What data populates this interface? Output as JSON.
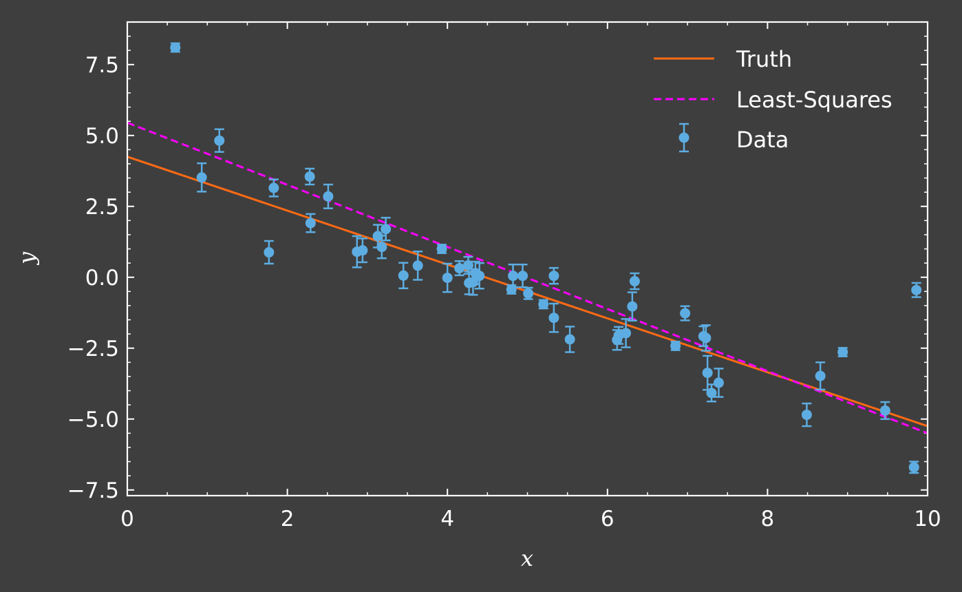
{
  "colors": {
    "background": "#3e3e3e",
    "axes": "#ffffff",
    "truth": "#ff6a14",
    "least_squares": "#ff00ff",
    "data": "#5dade2"
  },
  "chart_data": {
    "type": "scatter",
    "xlabel": "x",
    "ylabel": "y",
    "xlim": [
      0,
      10
    ],
    "ylim": [
      -7.7,
      9.0
    ],
    "xticks": [
      0,
      2,
      4,
      6,
      8,
      10
    ],
    "xtick_labels": [
      "0",
      "2",
      "4",
      "6",
      "8",
      "10"
    ],
    "yticks": [
      -7.5,
      -5.0,
      -2.5,
      0.0,
      2.5,
      5.0,
      7.5
    ],
    "ytick_labels": [
      "−7.5",
      "−5.0",
      "−2.5",
      "0.0",
      "2.5",
      "5.0",
      "7.5"
    ],
    "grid": false,
    "legend_position": "top-right",
    "legend": [
      "Truth",
      "Least-Squares",
      "Data"
    ],
    "series": [
      {
        "name": "Truth",
        "kind": "line",
        "style": "solid",
        "x": [
          0,
          10
        ],
        "y": [
          4.25,
          -5.25
        ]
      },
      {
        "name": "Least-Squares",
        "kind": "line",
        "style": "dashed",
        "x": [
          0,
          10
        ],
        "y": [
          5.45,
          -5.5
        ]
      },
      {
        "name": "Data",
        "kind": "errorbar",
        "points": [
          [
            0.6,
            8.1,
            0.15
          ],
          [
            0.93,
            3.52,
            0.5
          ],
          [
            1.15,
            4.82,
            0.4
          ],
          [
            1.77,
            0.88,
            0.4
          ],
          [
            1.83,
            3.15,
            0.3
          ],
          [
            2.28,
            3.55,
            0.28
          ],
          [
            2.29,
            1.91,
            0.32
          ],
          [
            2.51,
            2.85,
            0.42
          ],
          [
            2.87,
            0.9,
            0.55
          ],
          [
            2.94,
            0.95,
            0.42
          ],
          [
            3.13,
            1.45,
            0.4
          ],
          [
            3.18,
            1.07,
            0.4
          ],
          [
            3.23,
            1.7,
            0.4
          ],
          [
            3.45,
            0.06,
            0.45
          ],
          [
            3.63,
            0.41,
            0.5
          ],
          [
            3.93,
            1.0,
            0.15
          ],
          [
            4.0,
            -0.02,
            0.5
          ],
          [
            4.15,
            0.32,
            0.25
          ],
          [
            4.26,
            0.42,
            0.3
          ],
          [
            4.27,
            -0.2,
            0.4
          ],
          [
            4.32,
            -0.17,
            0.45
          ],
          [
            4.35,
            0.15,
            0.4
          ],
          [
            4.4,
            0.05,
            0.45
          ],
          [
            4.8,
            -0.43,
            0.15
          ],
          [
            4.82,
            0.05,
            0.4
          ],
          [
            4.94,
            0.05,
            0.4
          ],
          [
            5.01,
            -0.57,
            0.2
          ],
          [
            5.2,
            -0.95,
            0.15
          ],
          [
            5.33,
            0.05,
            0.28
          ],
          [
            5.33,
            -1.43,
            0.5
          ],
          [
            5.53,
            -2.19,
            0.45
          ],
          [
            6.12,
            -2.21,
            0.35
          ],
          [
            6.14,
            -2.05,
            0.3
          ],
          [
            6.23,
            -1.97,
            0.5
          ],
          [
            6.31,
            -1.03,
            0.5
          ],
          [
            6.34,
            -0.14,
            0.28
          ],
          [
            6.85,
            -2.42,
            0.15
          ],
          [
            6.97,
            -1.27,
            0.25
          ],
          [
            7.2,
            -2.08,
            0.35
          ],
          [
            7.23,
            -2.14,
            0.45
          ],
          [
            7.25,
            -3.37,
            0.6
          ],
          [
            7.3,
            -4.08,
            0.3
          ],
          [
            7.39,
            -3.72,
            0.5
          ],
          [
            8.49,
            -4.85,
            0.4
          ],
          [
            8.66,
            -3.48,
            0.48
          ],
          [
            8.94,
            -2.64,
            0.15
          ],
          [
            9.47,
            -4.7,
            0.3
          ],
          [
            9.83,
            -6.7,
            0.2
          ],
          [
            9.86,
            -0.45,
            0.25
          ]
        ]
      }
    ]
  }
}
